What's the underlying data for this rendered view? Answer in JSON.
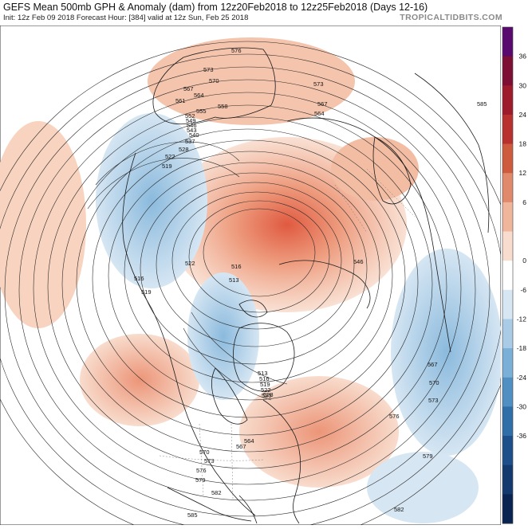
{
  "header": {
    "title": "GEFS Mean 500mb GPH & Anomaly (dam) from 12z20Feb2018 to 12z25Feb2018 (Days 12-16)",
    "subtitle": "Init: 12z Feb 09 2018   Forecast Hour: [384]   valid at 12z Sun, Feb 25 2018",
    "brand": "TROPICALTIDBITS.COM"
  },
  "colorbar": {
    "ticks": [
      "36",
      "30",
      "24",
      "18",
      "12",
      "6",
      "0",
      "-6",
      "-12",
      "-18",
      "-24",
      "-30",
      "-36"
    ],
    "colors": [
      "#5a0a6e",
      "#7c0f33",
      "#9e1b2c",
      "#b8312f",
      "#cf5b3f",
      "#e08a6b",
      "#f0b69c",
      "#f8dccd",
      "#ffffff",
      "#d6e6f3",
      "#a9cbe6",
      "#7ab0d8",
      "#4f8fc2",
      "#2f6ea8",
      "#1d4f8a",
      "#123a6e",
      "#0a2452"
    ],
    "zero_color": "#ffffff"
  },
  "contour_labels": [
    {
      "text": "576"
    },
    {
      "text": "573"
    },
    {
      "text": "570"
    },
    {
      "text": "567"
    },
    {
      "text": "564"
    },
    {
      "text": "561"
    },
    {
      "text": "558"
    },
    {
      "text": "555"
    },
    {
      "text": "552"
    },
    {
      "text": "549"
    },
    {
      "text": "546"
    },
    {
      "text": "543"
    },
    {
      "text": "540"
    },
    {
      "text": "537"
    },
    {
      "text": "528"
    },
    {
      "text": "522"
    },
    {
      "text": "519"
    },
    {
      "text": "573"
    },
    {
      "text": "567"
    },
    {
      "text": "564"
    },
    {
      "text": "585"
    },
    {
      "text": "522"
    },
    {
      "text": "516"
    },
    {
      "text": "513"
    },
    {
      "text": "516"
    },
    {
      "text": "519"
    },
    {
      "text": "546"
    },
    {
      "text": "513"
    },
    {
      "text": "516"
    },
    {
      "text": "519"
    },
    {
      "text": "522"
    },
    {
      "text": "525"
    },
    {
      "text": "528"
    },
    {
      "text": "567"
    },
    {
      "text": "570"
    },
    {
      "text": "573"
    },
    {
      "text": "576"
    },
    {
      "text": "579"
    },
    {
      "text": "582"
    },
    {
      "text": "564"
    },
    {
      "text": "567"
    },
    {
      "text": "570"
    },
    {
      "text": "573"
    },
    {
      "text": "576"
    },
    {
      "text": "579"
    },
    {
      "text": "582"
    },
    {
      "text": "585"
    }
  ]
}
